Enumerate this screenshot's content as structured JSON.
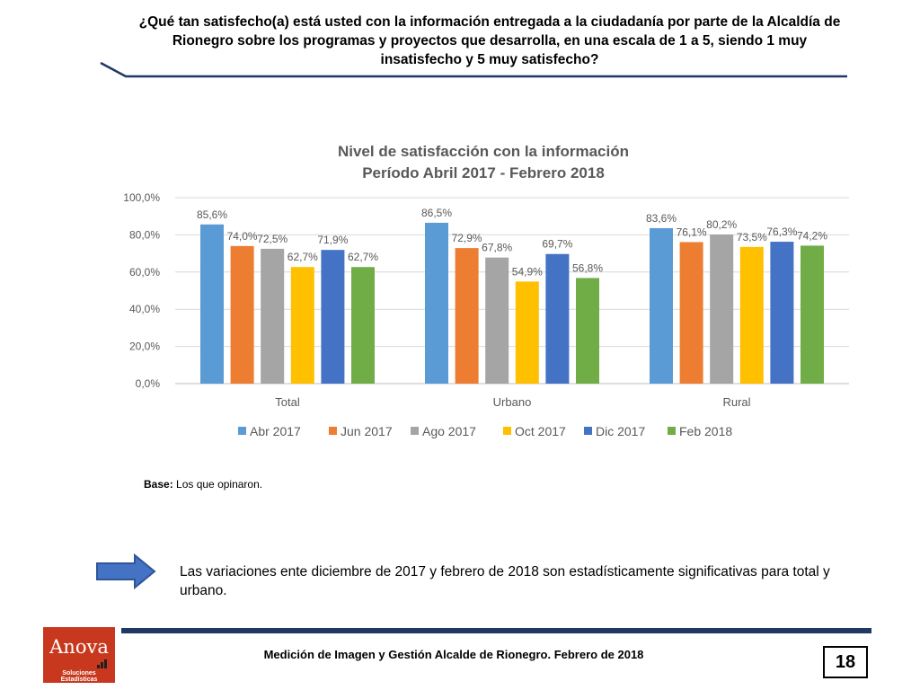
{
  "question": "¿Qué tan satisfecho(a) está usted con la información entregada a la ciudadanía por parte de la Alcaldía de Rionegro sobre los programas y proyectos que desarrolla, en una escala de 1 a 5, siendo 1 muy insatisfecho y 5 muy satisfecho?",
  "base_label": "Base:",
  "base_text": "Los que opinaron.",
  "finding": "Las variaciones ente diciembre de 2017 y febrero de 2018 son estadísticamente significativas para total y urbano.",
  "footer": "Medición de Imagen y Gestión Alcalde de Rionegro. Febrero de 2018",
  "page_number": "18",
  "logo": {
    "brand": "Anova",
    "tagline": "Soluciones Estadísticas",
    "color": "#c8381e"
  },
  "colors": {
    "rule": "#1f3864",
    "arrow": "#4472c4"
  },
  "chart_data": {
    "type": "bar",
    "title": "Nivel de satisfacción con la información",
    "subtitle": "Período Abril 2017 - Febrero 2018",
    "categories": [
      "Total",
      "Urbano",
      "Rural"
    ],
    "ylim": [
      0,
      100
    ],
    "yticks": [
      "0,0%",
      "20,0%",
      "40,0%",
      "60,0%",
      "80,0%",
      "100,0%"
    ],
    "ytick_values": [
      0,
      20,
      40,
      60,
      80,
      100
    ],
    "grid": true,
    "legend_position": "bottom",
    "series": [
      {
        "name": "Abr 2017",
        "color": "#5b9bd5",
        "values": [
          85.6,
          86.5,
          83.6
        ],
        "labels": [
          "85,6%",
          "86,5%",
          "83,6%"
        ]
      },
      {
        "name": "Jun 2017",
        "color": "#ed7d31",
        "values": [
          74.0,
          72.9,
          76.1
        ],
        "labels": [
          "74,0%",
          "72,9%",
          "76,1%"
        ]
      },
      {
        "name": "Ago 2017",
        "color": "#a5a5a5",
        "values": [
          72.5,
          67.8,
          80.2
        ],
        "labels": [
          "72,5%",
          "67,8%",
          "80,2%"
        ]
      },
      {
        "name": "Oct 2017",
        "color": "#ffc000",
        "values": [
          62.7,
          54.9,
          73.5
        ],
        "labels": [
          "62,7%",
          "54,9%",
          "73,5%"
        ]
      },
      {
        "name": "Dic 2017",
        "color": "#4472c4",
        "values": [
          71.9,
          69.7,
          76.3
        ],
        "labels": [
          "71,9%",
          "69,7%",
          "76,3%"
        ]
      },
      {
        "name": "Feb 2018",
        "color": "#70ad47",
        "values": [
          62.7,
          56.8,
          74.2
        ],
        "labels": [
          "62,7%",
          "56,8%",
          "74,2%"
        ]
      }
    ]
  }
}
